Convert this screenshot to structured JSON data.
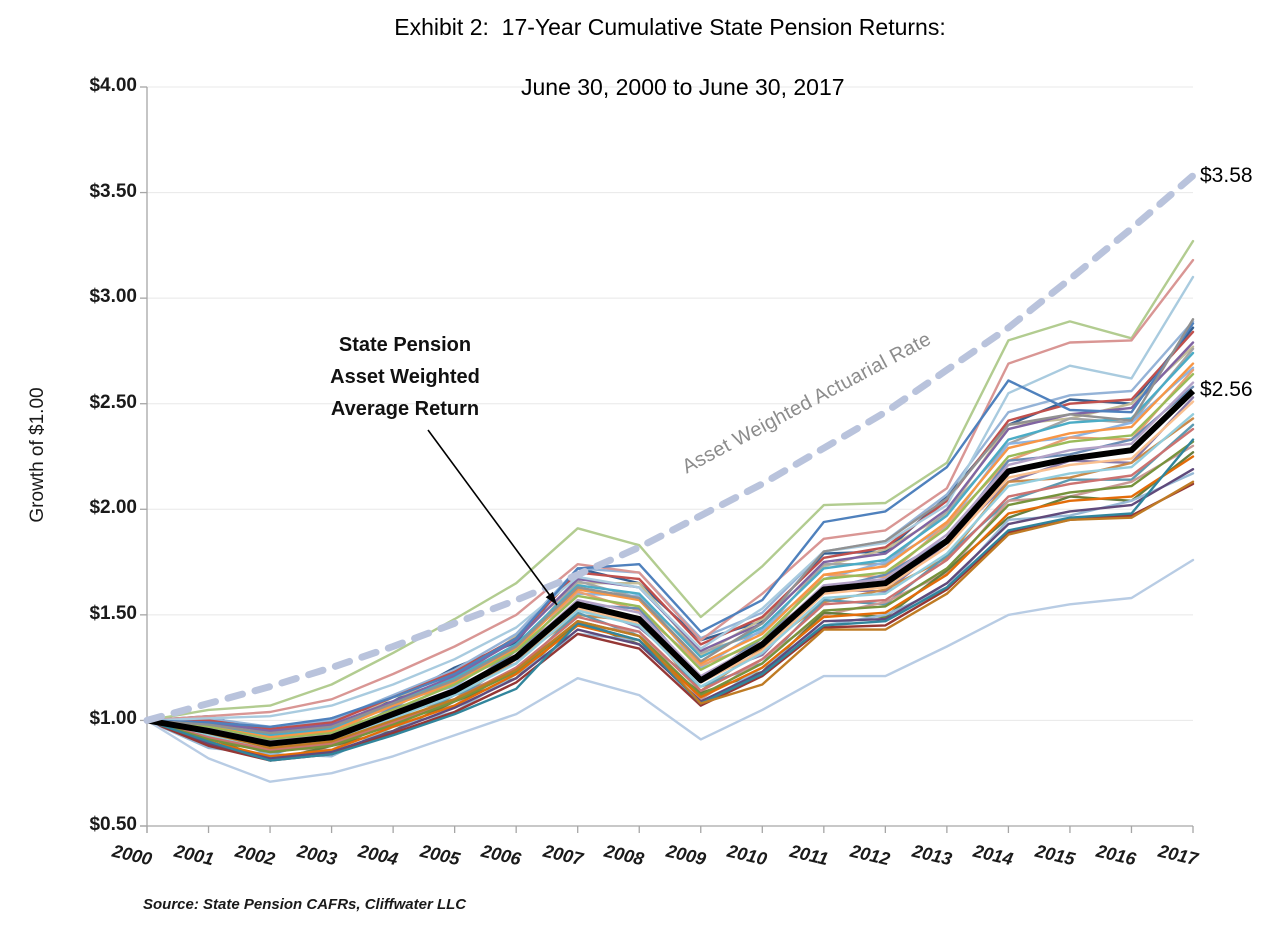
{
  "title": {
    "line1": "Exhibit 2:  17-Year Cumulative State Pension Returns:",
    "line2": "June 30, 2000 to June 30, 2017"
  },
  "source": "Source: State Pension CAFRs, Cliffwater LLC",
  "y_axis": {
    "label": "Growth of $1.00",
    "ticks": [
      "$4.00",
      "$3.50",
      "$3.00",
      "$2.50",
      "$2.00",
      "$1.50",
      "$1.00",
      "$0.50"
    ]
  },
  "annotation_average": {
    "lines": [
      "State Pension",
      "Asset Weighted",
      "Average Return"
    ]
  },
  "annotation_actuarial": {
    "text": "Asset Weighted Actuarial Rate"
  },
  "colors": {
    "actuarial_dash": "#b9c3dc",
    "average": "#000000",
    "gridline": "#e8e8e8",
    "axis": "#a6a6a6"
  },
  "chart_data": {
    "type": "line",
    "x": [
      2000,
      2001,
      2002,
      2003,
      2004,
      2005,
      2006,
      2007,
      2008,
      2009,
      2010,
      2011,
      2012,
      2013,
      2014,
      2015,
      2016,
      2017
    ],
    "xlabel": "",
    "ylabel": "Growth of $1.00",
    "ylim": [
      0.5,
      4.0
    ],
    "ytick_step": 0.5,
    "grid": true,
    "legend": "none",
    "series": [
      {
        "name": "State Pension Asset Weighted Average Return",
        "role": "average",
        "color": "#000000",
        "width": 6,
        "end_label": "$2.56",
        "values": [
          1.0,
          0.95,
          0.89,
          0.92,
          1.03,
          1.14,
          1.3,
          1.55,
          1.48,
          1.19,
          1.36,
          1.62,
          1.65,
          1.85,
          2.18,
          2.24,
          2.28,
          2.56
        ]
      },
      {
        "name": "Asset Weighted Actuarial Rate",
        "role": "actuarial",
        "color": "#b9c3dc",
        "width": 7,
        "dash": [
          15,
          13
        ],
        "end_label": "$3.58",
        "values": [
          1.0,
          1.08,
          1.16,
          1.25,
          1.35,
          1.46,
          1.57,
          1.69,
          1.82,
          1.97,
          2.12,
          2.29,
          2.46,
          2.66,
          2.86,
          3.09,
          3.33,
          3.58
        ]
      }
    ],
    "state_plans": [
      {
        "color": "#366092",
        "values": [
          1.0,
          1.02,
          0.94,
          1.01,
          1.09,
          1.25,
          1.37,
          1.72,
          1.65,
          1.38,
          1.47,
          1.79,
          1.8,
          2.06,
          2.4,
          2.52,
          2.5,
          2.86
        ]
      },
      {
        "color": "#c4bd97",
        "values": [
          1.0,
          0.97,
          0.97,
          0.96,
          1.11,
          1.19,
          1.4,
          1.65,
          1.65,
          1.31,
          1.48,
          1.73,
          1.81,
          1.98,
          2.4,
          2.43,
          2.5,
          2.77
        ]
      },
      {
        "color": "#a5a5a5",
        "values": [
          1.0,
          1.0,
          0.91,
          0.98,
          1.06,
          1.22,
          1.34,
          1.66,
          1.58,
          1.32,
          1.42,
          1.74,
          1.74,
          1.99,
          2.31,
          2.43,
          2.41,
          2.76
        ]
      },
      {
        "color": "#8db4e2",
        "values": [
          1.0,
          0.95,
          0.94,
          0.93,
          1.09,
          1.16,
          1.36,
          1.6,
          1.59,
          1.25,
          1.43,
          1.67,
          1.75,
          1.92,
          2.31,
          2.34,
          2.41,
          2.67
        ]
      },
      {
        "color": "#e8a075",
        "values": [
          1.0,
          0.99,
          0.89,
          0.96,
          1.03,
          1.19,
          1.31,
          1.61,
          1.52,
          1.26,
          1.37,
          1.69,
          1.68,
          1.93,
          2.23,
          2.34,
          2.33,
          2.66
        ]
      },
      {
        "color": "#6b8cb5",
        "values": [
          1.0,
          0.94,
          0.92,
          0.91,
          1.06,
          1.13,
          1.33,
          1.55,
          1.53,
          1.19,
          1.39,
          1.62,
          1.69,
          1.86,
          2.23,
          2.26,
          2.33,
          2.58
        ]
      },
      {
        "color": "#8a7aa8",
        "values": [
          1.0,
          0.96,
          0.86,
          0.93,
          1.0,
          1.15,
          1.27,
          1.55,
          1.44,
          1.2,
          1.31,
          1.62,
          1.61,
          1.84,
          2.13,
          2.23,
          2.22,
          2.53
        ]
      },
      {
        "color": "#cb8a4a",
        "values": [
          1.0,
          0.91,
          0.89,
          0.88,
          1.03,
          1.1,
          1.29,
          1.5,
          1.47,
          1.14,
          1.34,
          1.56,
          1.62,
          1.77,
          2.13,
          2.15,
          2.22,
          2.43
        ]
      },
      {
        "color": "#5d9ab0",
        "values": [
          1.0,
          0.94,
          0.84,
          0.91,
          0.97,
          1.12,
          1.23,
          1.51,
          1.4,
          1.16,
          1.27,
          1.57,
          1.55,
          1.78,
          2.04,
          2.14,
          2.14,
          2.4
        ]
      },
      {
        "color": "#c99a96",
        "values": [
          1.0,
          0.89,
          0.87,
          0.86,
          1.0,
          1.07,
          1.25,
          1.45,
          1.42,
          1.1,
          1.29,
          1.5,
          1.56,
          1.7,
          2.04,
          2.06,
          2.13,
          2.3
        ]
      },
      {
        "color": "#667e3e",
        "values": [
          1.0,
          0.92,
          0.81,
          0.88,
          0.95,
          1.09,
          1.2,
          1.47,
          1.36,
          1.13,
          1.23,
          1.51,
          1.49,
          1.71,
          1.96,
          2.06,
          2.04,
          2.27
        ]
      },
      {
        "color": "#97b9d6",
        "values": [
          1.0,
          0.87,
          0.84,
          0.83,
          0.97,
          1.04,
          1.22,
          1.41,
          1.38,
          1.07,
          1.25,
          1.45,
          1.5,
          1.63,
          1.95,
          1.97,
          2.04,
          2.17
        ]
      },
      {
        "color": "#95b3d7",
        "values": [
          1.0,
          1.01,
          0.97,
          1.0,
          1.12,
          1.24,
          1.41,
          1.72,
          1.7,
          1.39,
          1.51,
          1.8,
          1.85,
          2.07,
          2.46,
          2.54,
          2.56,
          2.89
        ]
      },
      {
        "color": "#c0504d",
        "values": [
          1.0,
          1.0,
          0.96,
          0.99,
          1.11,
          1.23,
          1.39,
          1.7,
          1.67,
          1.36,
          1.49,
          1.77,
          1.82,
          2.04,
          2.42,
          2.5,
          2.52,
          2.84
        ]
      },
      {
        "color": "#8064a2",
        "values": [
          1.0,
          0.99,
          0.95,
          0.98,
          1.09,
          1.21,
          1.38,
          1.67,
          1.63,
          1.33,
          1.46,
          1.75,
          1.79,
          2.0,
          2.38,
          2.45,
          2.48,
          2.79
        ]
      },
      {
        "color": "#4bacc6",
        "values": [
          1.0,
          0.98,
          0.93,
          0.96,
          1.08,
          1.2,
          1.36,
          1.64,
          1.6,
          1.3,
          1.44,
          1.72,
          1.76,
          1.97,
          2.33,
          2.41,
          2.43,
          2.74
        ]
      },
      {
        "color": "#f79646",
        "values": [
          1.0,
          0.97,
          0.92,
          0.95,
          1.07,
          1.18,
          1.34,
          1.62,
          1.57,
          1.27,
          1.41,
          1.69,
          1.73,
          1.94,
          2.29,
          2.36,
          2.39,
          2.69
        ]
      },
      {
        "color": "#9bbb59",
        "values": [
          1.0,
          0.97,
          0.91,
          0.94,
          1.05,
          1.17,
          1.33,
          1.59,
          1.54,
          1.24,
          1.39,
          1.67,
          1.7,
          1.91,
          2.25,
          2.32,
          2.35,
          2.64
        ]
      },
      {
        "color": "#b3a2c7",
        "values": [
          1.0,
          0.96,
          0.9,
          0.93,
          1.04,
          1.15,
          1.31,
          1.57,
          1.51,
          1.21,
          1.37,
          1.64,
          1.67,
          1.88,
          2.21,
          2.28,
          2.31,
          2.6
        ]
      },
      {
        "color": "#fac090",
        "values": [
          1.0,
          0.94,
          0.88,
          0.91,
          1.02,
          1.13,
          1.29,
          1.53,
          1.46,
          1.18,
          1.33,
          1.6,
          1.63,
          1.82,
          2.15,
          2.21,
          2.24,
          2.51
        ]
      },
      {
        "color": "#93cddd",
        "values": [
          1.0,
          0.93,
          0.87,
          0.9,
          1.01,
          1.12,
          1.27,
          1.52,
          1.45,
          1.16,
          1.32,
          1.58,
          1.6,
          1.79,
          2.11,
          2.17,
          2.2,
          2.45
        ]
      },
      {
        "color": "#cc7371",
        "values": [
          1.0,
          0.92,
          0.86,
          0.89,
          0.99,
          1.1,
          1.25,
          1.49,
          1.42,
          1.14,
          1.29,
          1.55,
          1.57,
          1.76,
          2.06,
          2.12,
          2.16,
          2.38
        ]
      },
      {
        "color": "#77933c",
        "values": [
          1.0,
          0.91,
          0.85,
          0.88,
          0.98,
          1.09,
          1.23,
          1.47,
          1.4,
          1.12,
          1.27,
          1.52,
          1.54,
          1.72,
          2.02,
          2.08,
          2.11,
          2.32
        ]
      },
      {
        "color": "#e36c09",
        "values": [
          1.0,
          0.9,
          0.83,
          0.86,
          0.97,
          1.07,
          1.22,
          1.45,
          1.38,
          1.11,
          1.25,
          1.49,
          1.51,
          1.69,
          1.98,
          2.04,
          2.06,
          2.25
        ]
      },
      {
        "color": "#604a7b",
        "values": [
          1.0,
          0.89,
          0.82,
          0.85,
          0.95,
          1.06,
          1.2,
          1.43,
          1.36,
          1.09,
          1.23,
          1.47,
          1.48,
          1.65,
          1.93,
          1.99,
          2.02,
          2.19
        ]
      },
      {
        "color": "#953735",
        "values": [
          1.0,
          0.88,
          0.81,
          0.84,
          0.94,
          1.04,
          1.18,
          1.41,
          1.34,
          1.07,
          1.21,
          1.44,
          1.45,
          1.62,
          1.89,
          1.95,
          1.97,
          2.12
        ]
      },
      {
        "color": "#b2cc90",
        "values": [
          1.0,
          1.05,
          1.07,
          1.17,
          1.32,
          1.48,
          1.65,
          1.91,
          1.83,
          1.49,
          1.73,
          2.02,
          2.03,
          2.22,
          2.8,
          2.89,
          2.81,
          3.27
        ]
      },
      {
        "color": "#d99694",
        "values": [
          1.0,
          1.02,
          1.04,
          1.1,
          1.22,
          1.35,
          1.5,
          1.74,
          1.7,
          1.38,
          1.6,
          1.86,
          1.9,
          2.1,
          2.69,
          2.79,
          2.8,
          3.18
        ]
      },
      {
        "color": "#a9cbdf",
        "values": [
          1.0,
          1.01,
          1.02,
          1.07,
          1.17,
          1.29,
          1.44,
          1.68,
          1.63,
          1.34,
          1.53,
          1.8,
          1.84,
          2.02,
          2.55,
          2.68,
          2.62,
          3.1
        ]
      },
      {
        "color": "#4f81bd",
        "values": [
          1.0,
          0.99,
          0.97,
          1.01,
          1.11,
          1.22,
          1.39,
          1.72,
          1.74,
          1.42,
          1.57,
          1.94,
          1.99,
          2.2,
          2.61,
          2.47,
          2.46,
          2.88
        ]
      },
      {
        "color": "#919191",
        "values": [
          1.0,
          0.98,
          0.94,
          0.97,
          1.08,
          1.19,
          1.35,
          1.63,
          1.58,
          1.28,
          1.46,
          1.8,
          1.85,
          2.05,
          2.4,
          2.45,
          2.42,
          2.9
        ]
      },
      {
        "color": "#31859c",
        "values": [
          1.0,
          0.9,
          0.81,
          0.84,
          0.93,
          1.03,
          1.15,
          1.46,
          1.38,
          1.08,
          1.22,
          1.45,
          1.47,
          1.63,
          1.9,
          1.96,
          1.98,
          2.33
        ]
      },
      {
        "color": "#bf7b24",
        "values": [
          1.0,
          0.94,
          0.87,
          0.9,
          1.0,
          1.1,
          1.24,
          1.47,
          1.4,
          1.08,
          1.17,
          1.43,
          1.43,
          1.6,
          1.88,
          1.95,
          1.96,
          2.13
        ]
      },
      {
        "color": "#b8cce4",
        "values": [
          1.0,
          0.82,
          0.71,
          0.75,
          0.83,
          0.93,
          1.03,
          1.2,
          1.12,
          0.91,
          1.05,
          1.21,
          1.21,
          1.35,
          1.5,
          1.55,
          1.58,
          1.76
        ]
      }
    ]
  }
}
